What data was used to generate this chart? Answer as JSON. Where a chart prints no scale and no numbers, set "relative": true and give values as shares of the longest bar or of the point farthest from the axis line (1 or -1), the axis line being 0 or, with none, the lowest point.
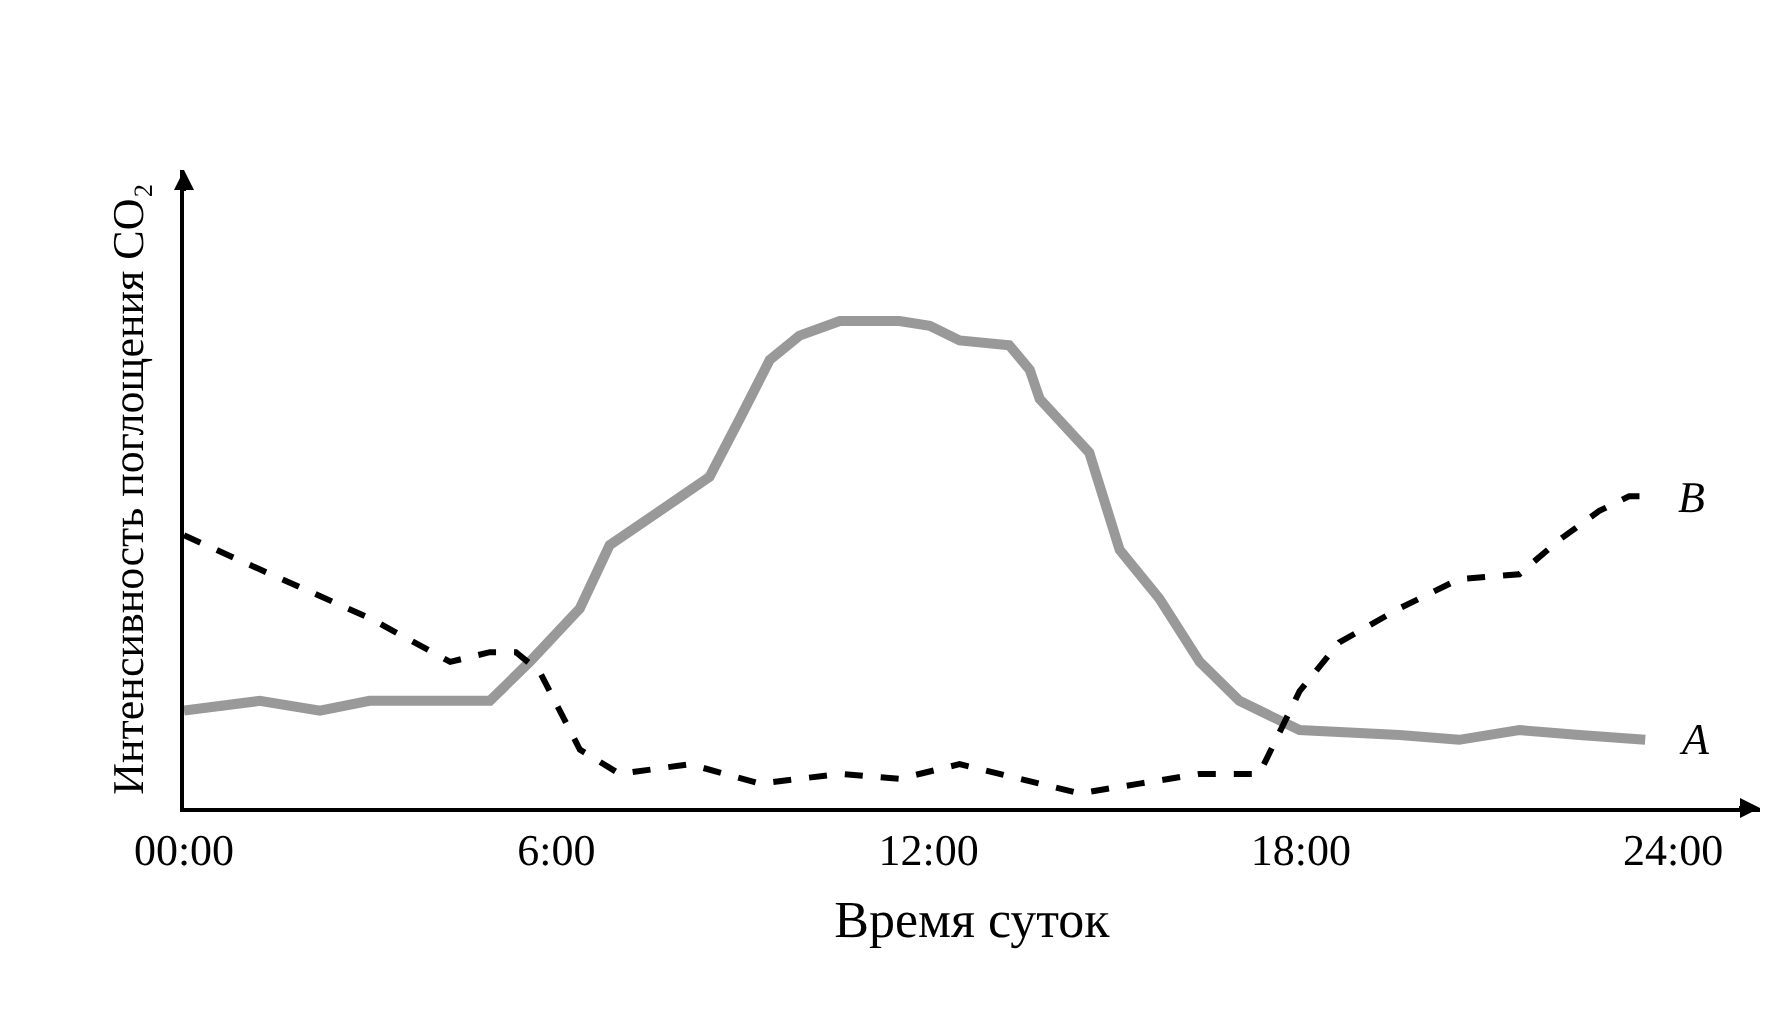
{
  "chart_data": {
    "type": "line",
    "relative": true,
    "xlabel": "Время суток",
    "ylabel": "Интенсивность поглощения CO₂",
    "xlim": [
      0,
      25.4
    ],
    "xticks": [
      {
        "value": 0,
        "label": "00:00"
      },
      {
        "value": 6,
        "label": "6:00"
      },
      {
        "value": 12,
        "label": "12:00"
      },
      {
        "value": 18,
        "label": "18:00"
      },
      {
        "value": 24,
        "label": "24:00"
      }
    ],
    "grid": false,
    "legend": false,
    "marker": "none",
    "series": [
      {
        "name": "A",
        "color": "#999999",
        "line_style": "solid",
        "x": [
          0,
          1.22,
          2.19,
          2.99,
          4.93,
          5.57,
          6.38,
          6.86,
          7.67,
          8.47,
          8.96,
          9.44,
          9.92,
          10.57,
          11.53,
          12.02,
          12.5,
          13.3,
          13.63,
          13.79,
          14.59,
          15.08,
          15.72,
          16.37,
          17.01,
          17.98,
          19.59,
          20.55,
          21.52,
          22.49,
          23.55
        ],
        "values": [
          0.2,
          0.22,
          0.2,
          0.22,
          0.22,
          0.3,
          0.41,
          0.54,
          0.61,
          0.68,
          0.8,
          0.92,
          0.97,
          1.0,
          1.0,
          0.99,
          0.96,
          0.95,
          0.9,
          0.84,
          0.73,
          0.53,
          0.43,
          0.3,
          0.22,
          0.16,
          0.15,
          0.14,
          0.16,
          0.15,
          0.14
        ]
      },
      {
        "name": "B",
        "color": "#000000",
        "line_style": "dashed",
        "x": [
          0,
          1.22,
          2.99,
          4.29,
          4.93,
          5.35,
          5.73,
          6.38,
          7.02,
          8.15,
          9.28,
          10.57,
          11.53,
          12.5,
          13.47,
          14.43,
          15.4,
          16.37,
          17.33,
          17.98,
          18.62,
          19.59,
          20.55,
          21.52,
          22.16,
          22.81,
          23.29,
          23.55
        ],
        "values": [
          0.56,
          0.49,
          0.39,
          0.3,
          0.32,
          0.32,
          0.28,
          0.12,
          0.07,
          0.09,
          0.05,
          0.07,
          0.06,
          0.09,
          0.06,
          0.03,
          0.05,
          0.07,
          0.07,
          0.24,
          0.34,
          0.41,
          0.47,
          0.48,
          0.55,
          0.61,
          0.64,
          0.64
        ]
      }
    ]
  }
}
